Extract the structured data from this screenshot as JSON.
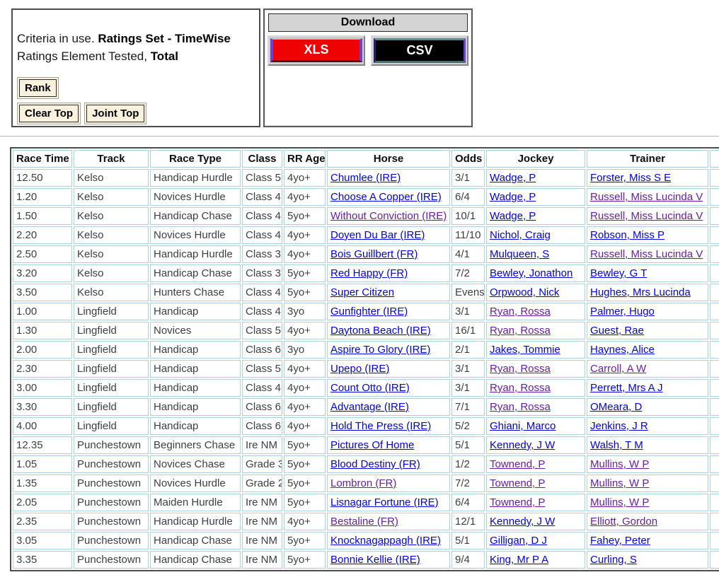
{
  "criteria": {
    "line1_normal": "Criteria in use. ",
    "line1_bold": "Ratings Set - TimeWise",
    "line2_normal": "Ratings Element Tested, ",
    "line2_bold": "Total",
    "rank_label": "Rank",
    "clear_top_label": "Clear Top",
    "joint_top_label": "Joint Top"
  },
  "download": {
    "title": "Download",
    "xls_label": "XLS",
    "csv_label": "CSV"
  },
  "colors": {
    "xls_button": "#ee0202",
    "csv_button": "#000000",
    "link_blue": "#0000e3",
    "link_visited_purple": "#681da8",
    "cell_border": "#abd2dc",
    "download_header_bg": "#d4d4d4",
    "form_button_bg": "#f7f1de"
  },
  "table": {
    "columns": [
      "Race Time",
      "Track",
      "Race Type",
      "Class",
      "RR Age",
      "Horse",
      "Odds",
      "Jockey",
      "Trainer"
    ],
    "rows": [
      {
        "race_time": "12.50",
        "track": "Kelso",
        "race_type": "Handicap Hurdle",
        "race_class": "Class 5",
        "rr_age": "4yo+",
        "horse": {
          "text": "Chumlee (IRE)",
          "visited": false
        },
        "odds": "3/1",
        "jockey": {
          "text": "Wadge, P",
          "visited": false
        },
        "trainer": {
          "text": "Forster, Miss S E",
          "visited": false
        }
      },
      {
        "race_time": "1.20",
        "track": "Kelso",
        "race_type": "Novices Hurdle",
        "race_class": "Class 4",
        "rr_age": "4yo+",
        "horse": {
          "text": "Choose A Copper (IRE)",
          "visited": false
        },
        "odds": "6/4",
        "jockey": {
          "text": "Wadge, P",
          "visited": false
        },
        "trainer": {
          "text": "Russell, Miss Lucinda V",
          "visited": true
        }
      },
      {
        "race_time": "1.50",
        "track": "Kelso",
        "race_type": "Handicap Chase",
        "race_class": "Class 4",
        "rr_age": "5yo+",
        "horse": {
          "text": "Without Conviction (IRE)",
          "visited": true
        },
        "odds": "10/1",
        "jockey": {
          "text": "Wadge, P",
          "visited": false
        },
        "trainer": {
          "text": "Russell, Miss Lucinda V",
          "visited": true
        }
      },
      {
        "race_time": "2.20",
        "track": "Kelso",
        "race_type": "Novices Hurdle",
        "race_class": "Class 4",
        "rr_age": "4yo+",
        "horse": {
          "text": "Doyen Du Bar (IRE)",
          "visited": false
        },
        "odds": "11/10",
        "jockey": {
          "text": "Nichol, Craig",
          "visited": false
        },
        "trainer": {
          "text": "Robson, Miss P",
          "visited": false
        }
      },
      {
        "race_time": "2.50",
        "track": "Kelso",
        "race_type": "Handicap Hurdle",
        "race_class": "Class 3",
        "rr_age": "4yo+",
        "horse": {
          "text": "Bois Guillbert (FR)",
          "visited": false
        },
        "odds": "4/1",
        "jockey": {
          "text": "Mulqueen, S",
          "visited": false
        },
        "trainer": {
          "text": "Russell, Miss Lucinda V",
          "visited": true
        }
      },
      {
        "race_time": "3.20",
        "track": "Kelso",
        "race_type": "Handicap Chase",
        "race_class": "Class 3",
        "rr_age": "5yo+",
        "horse": {
          "text": "Red Happy (FR)",
          "visited": false
        },
        "odds": "7/2",
        "jockey": {
          "text": "Bewley, Jonathon",
          "visited": false
        },
        "trainer": {
          "text": "Bewley, G T",
          "visited": false
        }
      },
      {
        "race_time": "3.50",
        "track": "Kelso",
        "race_type": "Hunters Chase",
        "race_class": "Class 4",
        "rr_age": "5yo+",
        "horse": {
          "text": "Super Citizen",
          "visited": false
        },
        "odds": "Evens",
        "jockey": {
          "text": "Orpwood, Nick",
          "visited": false
        },
        "trainer": {
          "text": "Hughes, Mrs Lucinda",
          "visited": false
        }
      },
      {
        "race_time": "1.00",
        "track": "Lingfield",
        "race_type": "Handicap",
        "race_class": "Class 4",
        "rr_age": "3yo",
        "horse": {
          "text": "Gunfighter (IRE)",
          "visited": false
        },
        "odds": "3/1",
        "jockey": {
          "text": "Ryan, Rossa",
          "visited": true
        },
        "trainer": {
          "text": "Palmer, Hugo",
          "visited": false
        }
      },
      {
        "race_time": "1.30",
        "track": "Lingfield",
        "race_type": "Novices",
        "race_class": "Class 5",
        "rr_age": "4yo+",
        "horse": {
          "text": "Daytona Beach (IRE)",
          "visited": false
        },
        "odds": "16/1",
        "jockey": {
          "text": "Ryan, Rossa",
          "visited": true
        },
        "trainer": {
          "text": "Guest, Rae",
          "visited": false
        }
      },
      {
        "race_time": "2.00",
        "track": "Lingfield",
        "race_type": "Handicap",
        "race_class": "Class 6",
        "rr_age": "3yo",
        "horse": {
          "text": "Aspire To Glory (IRE)",
          "visited": false
        },
        "odds": "2/1",
        "jockey": {
          "text": "Jakes, Tommie",
          "visited": false
        },
        "trainer": {
          "text": "Haynes, Alice",
          "visited": false
        }
      },
      {
        "race_time": "2.30",
        "track": "Lingfield",
        "race_type": "Handicap",
        "race_class": "Class 5",
        "rr_age": "4yo+",
        "horse": {
          "text": "Upepo (IRE)",
          "visited": false
        },
        "odds": "3/1",
        "jockey": {
          "text": "Ryan, Rossa",
          "visited": true
        },
        "trainer": {
          "text": "Carroll, A W",
          "visited": true
        }
      },
      {
        "race_time": "3.00",
        "track": "Lingfield",
        "race_type": "Handicap",
        "race_class": "Class 4",
        "rr_age": "4yo+",
        "horse": {
          "text": "Count Otto (IRE)",
          "visited": false
        },
        "odds": "3/1",
        "jockey": {
          "text": "Ryan, Rossa",
          "visited": true
        },
        "trainer": {
          "text": "Perrett, Mrs A J",
          "visited": false
        }
      },
      {
        "race_time": "3.30",
        "track": "Lingfield",
        "race_type": "Handicap",
        "race_class": "Class 6",
        "rr_age": "4yo+",
        "horse": {
          "text": "Advantage (IRE)",
          "visited": false
        },
        "odds": "7/1",
        "jockey": {
          "text": "Ryan, Rossa",
          "visited": true
        },
        "trainer": {
          "text": "OMeara, D",
          "visited": false
        }
      },
      {
        "race_time": "4.00",
        "track": "Lingfield",
        "race_type": "Handicap",
        "race_class": "Class 6",
        "rr_age": "4yo+",
        "horse": {
          "text": "Hold The Press (IRE)",
          "visited": false
        },
        "odds": "5/2",
        "jockey": {
          "text": "Ghiani, Marco",
          "visited": false
        },
        "trainer": {
          "text": "Jenkins, J R",
          "visited": false
        }
      },
      {
        "race_time": "12.35",
        "track": "Punchestown",
        "race_type": "Beginners Chase",
        "race_class": "Ire NM",
        "rr_age": "5yo+",
        "horse": {
          "text": "Pictures Of Home",
          "visited": false
        },
        "odds": "5/1",
        "jockey": {
          "text": "Kennedy, J W",
          "visited": false
        },
        "trainer": {
          "text": "Walsh, T M",
          "visited": false
        }
      },
      {
        "race_time": "1.05",
        "track": "Punchestown",
        "race_type": "Novices Chase",
        "race_class": "Grade 3",
        "rr_age": "5yo+",
        "horse": {
          "text": "Blood Destiny (FR)",
          "visited": false
        },
        "odds": "1/2",
        "jockey": {
          "text": "Townend, P",
          "visited": true
        },
        "trainer": {
          "text": "Mullins, W P",
          "visited": true
        }
      },
      {
        "race_time": "1.35",
        "track": "Punchestown",
        "race_type": "Novices Hurdle",
        "race_class": "Grade 2",
        "rr_age": "5yo+",
        "horse": {
          "text": "Lombron (FR)",
          "visited": true
        },
        "odds": "7/2",
        "jockey": {
          "text": "Townend, P",
          "visited": true
        },
        "trainer": {
          "text": "Mullins, W P",
          "visited": true
        }
      },
      {
        "race_time": "2.05",
        "track": "Punchestown",
        "race_type": "Maiden Hurdle",
        "race_class": "Ire NM",
        "rr_age": "5yo+",
        "horse": {
          "text": "Lisnagar Fortune (IRE)",
          "visited": false
        },
        "odds": "6/4",
        "jockey": {
          "text": "Townend, P",
          "visited": true
        },
        "trainer": {
          "text": "Mullins, W P",
          "visited": true
        }
      },
      {
        "race_time": "2.35",
        "track": "Punchestown",
        "race_type": "Handicap Hurdle",
        "race_class": "Ire NM",
        "rr_age": "4yo+",
        "horse": {
          "text": "Bestaline (FR)",
          "visited": true
        },
        "odds": "12/1",
        "jockey": {
          "text": "Kennedy, J W",
          "visited": false
        },
        "trainer": {
          "text": "Elliott, Gordon",
          "visited": true
        }
      },
      {
        "race_time": "3.05",
        "track": "Punchestown",
        "race_type": "Handicap Chase",
        "race_class": "Ire NM",
        "rr_age": "5yo+",
        "horse": {
          "text": "Knocknagappagh (IRE)",
          "visited": false
        },
        "odds": "5/1",
        "jockey": {
          "text": "Gilligan, D J",
          "visited": false
        },
        "trainer": {
          "text": "Fahey, Peter",
          "visited": false
        }
      },
      {
        "race_time": "3.35",
        "track": "Punchestown",
        "race_type": "Handicap Chase",
        "race_class": "Ire NM",
        "rr_age": "5yo+",
        "horse": {
          "text": "Bonnie Kellie (IRE)",
          "visited": false
        },
        "odds": "9/4",
        "jockey": {
          "text": "King, Mr P A",
          "visited": false
        },
        "trainer": {
          "text": "Curling, S",
          "visited": false
        }
      }
    ]
  }
}
